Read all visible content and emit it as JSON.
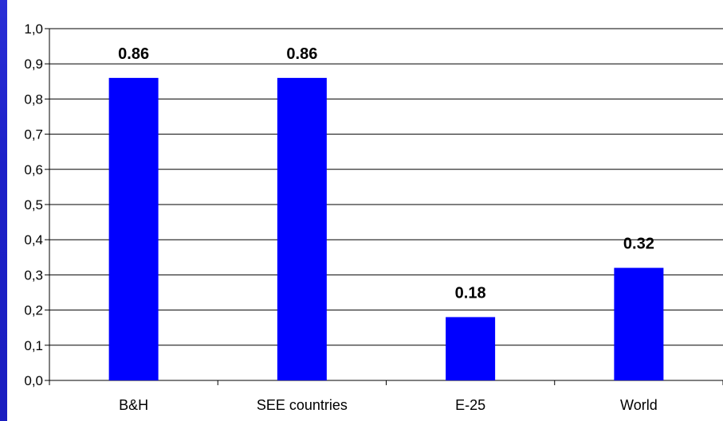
{
  "colors": {
    "bar": "#0000ff",
    "frame": "#1c20c8",
    "background": "#ffffff",
    "gridline": "#000000"
  },
  "chart_data": {
    "type": "bar",
    "categories": [
      "B&H",
      "SEE countries",
      "E-25",
      "World"
    ],
    "values": [
      0.86,
      0.86,
      0.18,
      0.32
    ],
    "data_labels": [
      "0.86",
      "0.86",
      "0.18",
      "0.32"
    ],
    "title": "",
    "xlabel": "",
    "ylabel": "",
    "ylim": [
      0,
      1.0
    ],
    "yticks": [
      0.0,
      0.1,
      0.2,
      0.3,
      0.4,
      0.5,
      0.6,
      0.7,
      0.8,
      0.9,
      1.0
    ],
    "ytick_labels": [
      "0,0",
      "0,1",
      "0,2",
      "0,3",
      "0,4",
      "0,5",
      "0,6",
      "0,7",
      "0,8",
      "0,9",
      "1,0"
    ],
    "grid": true,
    "legend": "none"
  }
}
